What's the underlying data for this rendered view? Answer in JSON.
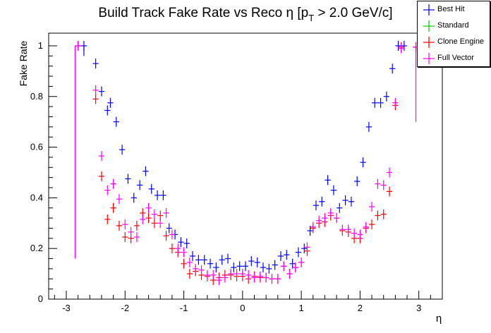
{
  "chart_data": {
    "type": "scatter",
    "title_main": "Build Track Fake Rate vs Reco η [p",
    "title_sub": "T",
    "title_tail": " > 2.0 GeV/c]",
    "xlabel": "η",
    "ylabel": "Fake Rate",
    "xlim": [
      -3.3,
      3.4
    ],
    "ylim": [
      0,
      1.05
    ],
    "xticks": [
      -3,
      -2,
      -1,
      0,
      1,
      2,
      3
    ],
    "yticks": [
      0,
      0.2,
      0.4,
      0.6,
      0.8,
      1
    ],
    "grid": false,
    "legend_position": "top-right",
    "series": [
      {
        "name": "Best Hit",
        "color": "#0000ff",
        "points": [
          [
            -2.8,
            1.0
          ],
          [
            -2.7,
            1.0
          ],
          [
            -2.5,
            0.93
          ],
          [
            -2.4,
            0.82
          ],
          [
            -2.3,
            0.745
          ],
          [
            -2.25,
            0.775
          ],
          [
            -2.15,
            0.7
          ],
          [
            -2.05,
            0.59
          ],
          [
            -1.95,
            0.475
          ],
          [
            -1.85,
            0.4
          ],
          [
            -1.75,
            0.45
          ],
          [
            -1.65,
            0.505
          ],
          [
            -1.55,
            0.435
          ],
          [
            -1.45,
            0.41
          ],
          [
            -1.35,
            0.41
          ],
          [
            -1.25,
            0.28
          ],
          [
            -1.15,
            0.255
          ],
          [
            -1.05,
            0.225
          ],
          [
            -0.95,
            0.22
          ],
          [
            -0.85,
            0.17
          ],
          [
            -0.75,
            0.155
          ],
          [
            -0.65,
            0.155
          ],
          [
            -0.55,
            0.14
          ],
          [
            -0.45,
            0.125
          ],
          [
            -0.35,
            0.155
          ],
          [
            -0.25,
            0.16
          ],
          [
            -0.15,
            0.125
          ],
          [
            -0.05,
            0.13
          ],
          [
            0.05,
            0.13
          ],
          [
            0.15,
            0.15
          ],
          [
            0.25,
            0.145
          ],
          [
            0.35,
            0.125
          ],
          [
            0.45,
            0.12
          ],
          [
            0.55,
            0.135
          ],
          [
            0.65,
            0.17
          ],
          [
            0.75,
            0.175
          ],
          [
            0.85,
            0.14
          ],
          [
            0.95,
            0.185
          ],
          [
            1.05,
            0.2
          ],
          [
            1.15,
            0.27
          ],
          [
            1.25,
            0.37
          ],
          [
            1.35,
            0.385
          ],
          [
            1.45,
            0.47
          ],
          [
            1.55,
            0.43
          ],
          [
            1.65,
            0.36
          ],
          [
            1.75,
            0.39
          ],
          [
            1.85,
            0.385
          ],
          [
            1.95,
            0.465
          ],
          [
            2.05,
            0.54
          ],
          [
            2.15,
            0.68
          ],
          [
            2.25,
            0.775
          ],
          [
            2.35,
            0.775
          ],
          [
            2.45,
            0.8
          ],
          [
            2.55,
            0.91
          ],
          [
            2.65,
            1.0
          ],
          [
            2.75,
            1.0
          ]
        ]
      },
      {
        "name": "Standard",
        "color": "#00cc00",
        "points": []
      },
      {
        "name": "Clone Engine",
        "color": "#ff0000",
        "points": [
          [
            -2.8,
            1.0
          ],
          [
            -2.5,
            0.79
          ],
          [
            -2.4,
            0.485
          ],
          [
            -2.3,
            0.315
          ],
          [
            -2.2,
            0.36
          ],
          [
            -2.1,
            0.29
          ],
          [
            -2.0,
            0.245
          ],
          [
            -1.9,
            0.24
          ],
          [
            -1.8,
            0.29
          ],
          [
            -1.7,
            0.34
          ],
          [
            -1.6,
            0.32
          ],
          [
            -1.5,
            0.3
          ],
          [
            -1.4,
            0.33
          ],
          [
            -1.3,
            0.25
          ],
          [
            -1.2,
            0.2
          ],
          [
            -1.1,
            0.185
          ],
          [
            -1.0,
            0.14
          ],
          [
            -0.9,
            0.1
          ],
          [
            -0.8,
            0.11
          ],
          [
            -0.7,
            0.095
          ],
          [
            -0.6,
            0.09
          ],
          [
            -0.5,
            0.075
          ],
          [
            -0.4,
            0.085
          ],
          [
            -0.3,
            0.095
          ],
          [
            -0.2,
            0.095
          ],
          [
            -0.1,
            0.09
          ],
          [
            0.0,
            0.09
          ],
          [
            0.1,
            0.08
          ],
          [
            0.2,
            0.09
          ],
          [
            0.3,
            0.085
          ],
          [
            0.4,
            0.085
          ],
          [
            0.5,
            0.08
          ],
          [
            0.6,
            0.08
          ],
          [
            0.7,
            0.13
          ],
          [
            0.8,
            0.1
          ],
          [
            0.9,
            0.125
          ],
          [
            1.0,
            0.145
          ],
          [
            1.1,
            0.19
          ],
          [
            1.2,
            0.28
          ],
          [
            1.3,
            0.3
          ],
          [
            1.4,
            0.305
          ],
          [
            1.5,
            0.33
          ],
          [
            1.6,
            0.32
          ],
          [
            1.7,
            0.27
          ],
          [
            1.8,
            0.265
          ],
          [
            1.9,
            0.24
          ],
          [
            2.0,
            0.24
          ],
          [
            2.1,
            0.28
          ],
          [
            2.2,
            0.295
          ],
          [
            2.3,
            0.33
          ],
          [
            2.4,
            0.335
          ],
          [
            2.5,
            0.425
          ],
          [
            2.6,
            0.765
          ],
          [
            2.7,
            0.995
          ],
          [
            2.95,
            0.995
          ]
        ]
      },
      {
        "name": "Full Vector",
        "color": "#ff00ff",
        "points": [
          [
            -2.8,
            1.0
          ],
          [
            -2.5,
            0.825
          ],
          [
            -2.4,
            0.565
          ],
          [
            -2.3,
            0.43
          ],
          [
            -2.2,
            0.455
          ],
          [
            -2.1,
            0.395
          ],
          [
            -2.0,
            0.295
          ],
          [
            -1.9,
            0.265
          ],
          [
            -1.8,
            0.245
          ],
          [
            -1.7,
            0.315
          ],
          [
            -1.6,
            0.36
          ],
          [
            -1.5,
            0.335
          ],
          [
            -1.4,
            0.3
          ],
          [
            -1.3,
            0.34
          ],
          [
            -1.2,
            0.255
          ],
          [
            -1.1,
            0.2
          ],
          [
            -1.0,
            0.185
          ],
          [
            -0.9,
            0.145
          ],
          [
            -0.8,
            0.12
          ],
          [
            -0.7,
            0.115
          ],
          [
            -0.6,
            0.095
          ],
          [
            -0.5,
            0.095
          ],
          [
            -0.4,
            0.075
          ],
          [
            -0.3,
            0.085
          ],
          [
            -0.2,
            0.1
          ],
          [
            -0.1,
            0.1
          ],
          [
            0.0,
            0.1
          ],
          [
            0.1,
            0.095
          ],
          [
            0.2,
            0.085
          ],
          [
            0.3,
            0.09
          ],
          [
            0.4,
            0.085
          ],
          [
            0.5,
            0.08
          ],
          [
            0.6,
            0.08
          ],
          [
            0.7,
            0.13
          ],
          [
            0.8,
            0.1
          ],
          [
            0.9,
            0.125
          ],
          [
            1.0,
            0.145
          ],
          [
            1.1,
            0.205
          ],
          [
            1.2,
            0.285
          ],
          [
            1.3,
            0.31
          ],
          [
            1.4,
            0.32
          ],
          [
            1.5,
            0.34
          ],
          [
            1.6,
            0.32
          ],
          [
            1.7,
            0.275
          ],
          [
            1.8,
            0.275
          ],
          [
            1.9,
            0.26
          ],
          [
            2.0,
            0.255
          ],
          [
            2.1,
            0.285
          ],
          [
            2.2,
            0.365
          ],
          [
            2.3,
            0.455
          ],
          [
            2.4,
            0.45
          ],
          [
            2.5,
            0.5
          ],
          [
            2.6,
            0.775
          ],
          [
            2.7,
            0.99
          ],
          [
            2.95,
            0.995
          ]
        ]
      }
    ]
  }
}
